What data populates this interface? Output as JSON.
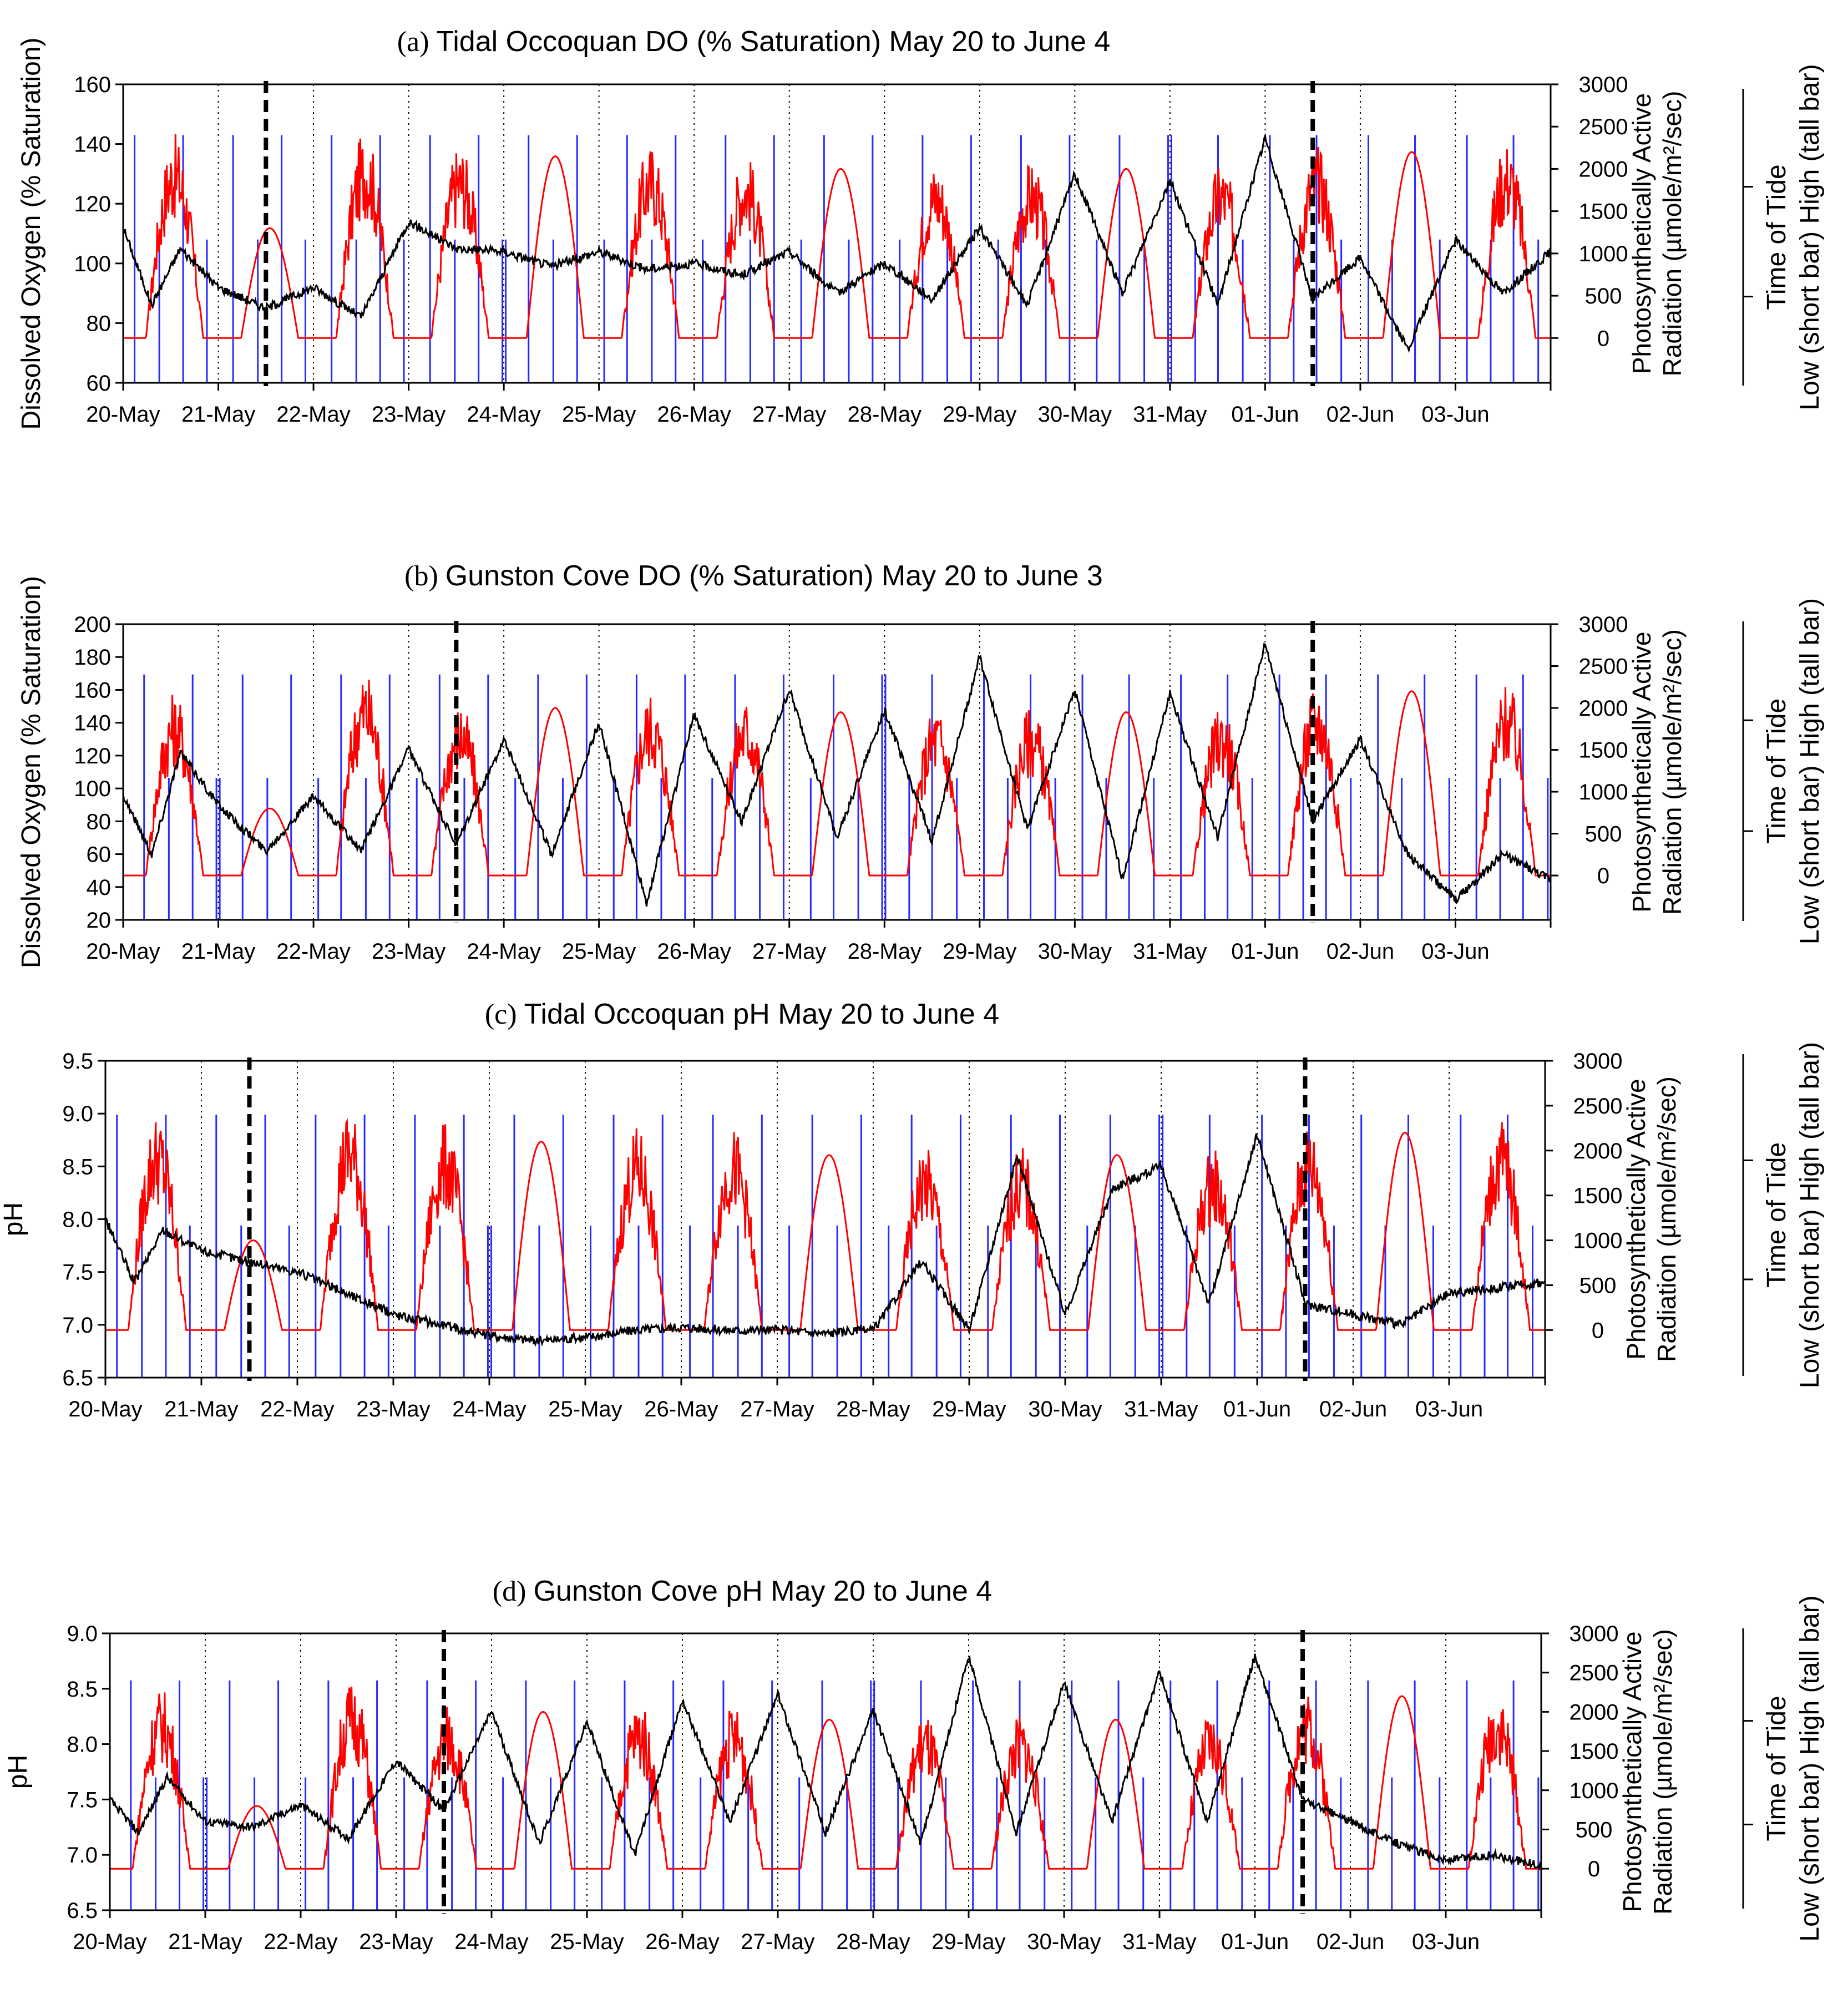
{
  "chart_data": [
    {
      "type": "line",
      "panel": "(a)",
      "title": "Tidal Occoquan DO (% Saturation) May 20 to June 4",
      "ylabel": "Dissolved Oxygen (% Saturation)",
      "ylim": [
        60,
        160
      ],
      "yticks": [
        60,
        80,
        100,
        120,
        140,
        160
      ],
      "y2label_line1": "Photosynthetically Active",
      "y2label_line2": "Radiation (µmole/m²/sec)",
      "y2lim": [
        0,
        3000
      ],
      "y2ticks": [
        0,
        500,
        1000,
        1500,
        2000,
        2500,
        3000
      ],
      "tide_label_line1": "Time of Tide",
      "tide_label_line2": "Low (short bar)   High (tall bar)",
      "x_tick_labels": [
        "20-May",
        "21-May",
        "22-May",
        "23-May",
        "24-May",
        "25-May",
        "26-May",
        "27-May",
        "28-May",
        "29-May",
        "30-May",
        "31-May",
        "01-Jun",
        "02-Jun",
        "03-Jun"
      ],
      "xlim_days": [
        0,
        15
      ],
      "event_lines_day": [
        1.5,
        12.5
      ],
      "series": [
        {
          "name": "Dissolved Oxygen",
          "color": "#000000",
          "x_day": [
            0,
            0.3,
            0.6,
            1.0,
            1.5,
            2.0,
            2.5,
            3.0,
            3.5,
            4.0,
            4.5,
            5.0,
            5.5,
            6.0,
            6.5,
            7.0,
            7.5,
            8.0,
            8.5,
            9.0,
            9.5,
            10.0,
            10.5,
            11.0,
            11.5,
            12.0,
            12.5,
            13.0,
            13.5,
            14.0,
            14.5,
            15.0
          ],
          "values": [
            112,
            86,
            105,
            92,
            85,
            92,
            82,
            114,
            105,
            104,
            99,
            104,
            98,
            100,
            96,
            104,
            90,
            100,
            88,
            112,
            86,
            130,
            90,
            128,
            86,
            142,
            88,
            102,
            71,
            108,
            90,
            104
          ]
        },
        {
          "name": "PAR peak",
          "color": "#ff0000",
          "unit": "µmole/m²/sec",
          "x_day": [
            0.5,
            1.5,
            2.5,
            3.5,
            4.5,
            5.5,
            6.5,
            7.5,
            8.5,
            9.5,
            10.5,
            11.5,
            12.5,
            13.5,
            14.5
          ],
          "values": [
            2300,
            1300,
            2350,
            2200,
            2150,
            2200,
            2100,
            2000,
            2000,
            2000,
            2000,
            2000,
            2200,
            2200,
            2250
          ]
        },
        {
          "name": "Time of Tide",
          "color": "#0000ff",
          "note": "about four tide bars per day: tall bar = high tide, short bar = low tide"
        }
      ]
    },
    {
      "type": "line",
      "panel": "(b)",
      "title": "Gunston Cove DO (% Saturation) May 20 to June 3",
      "ylabel": "Dissolved Oxygen (% Saturation)",
      "ylim": [
        20,
        200
      ],
      "yticks": [
        20,
        40,
        60,
        80,
        100,
        120,
        140,
        160,
        180,
        200
      ],
      "y2label_line1": "Photosynthetically Active",
      "y2label_line2": "Radiation (µmole/m²/sec)",
      "y2lim": [
        0,
        3000
      ],
      "y2ticks": [
        0,
        500,
        1000,
        1500,
        2000,
        2500,
        3000
      ],
      "tide_label_line1": "Time of Tide",
      "tide_label_line2": "Low (short bar)   High (tall bar)",
      "x_tick_labels": [
        "20-May",
        "21-May",
        "22-May",
        "23-May",
        "24-May",
        "25-May",
        "26-May",
        "27-May",
        "28-May",
        "29-May",
        "30-May",
        "31-May",
        "01-Jun",
        "02-Jun",
        "03-Jun"
      ],
      "xlim_days": [
        0,
        15
      ],
      "event_lines_day": [
        3.5,
        12.5
      ],
      "series": [
        {
          "name": "Dissolved Oxygen",
          "color": "#000000",
          "x_day": [
            0,
            0.3,
            0.6,
            1.0,
            1.5,
            2.0,
            2.5,
            3.0,
            3.5,
            4.0,
            4.5,
            5.0,
            5.5,
            6.0,
            6.5,
            7.0,
            7.5,
            8.0,
            8.5,
            9.0,
            9.5,
            10.0,
            10.5,
            11.0,
            11.5,
            12.0,
            12.5,
            13.0,
            13.5,
            14.0,
            14.5,
            15.0
          ],
          "values": [
            96,
            60,
            122,
            90,
            62,
            95,
            62,
            124,
            65,
            130,
            60,
            140,
            30,
            145,
            80,
            160,
            70,
            148,
            68,
            180,
            75,
            160,
            45,
            158,
            70,
            188,
            80,
            130,
            60,
            32,
            60,
            44
          ]
        },
        {
          "name": "PAR peak",
          "color": "#ff0000",
          "unit": "µmole/m²/sec",
          "x_day": [
            0.5,
            1.5,
            2.5,
            3.5,
            4.5,
            5.5,
            6.5,
            7.5,
            8.5,
            9.5,
            10.5,
            11.5,
            12.5,
            13.5,
            14.5
          ],
          "values": [
            2100,
            800,
            2350,
            2000,
            2000,
            2100,
            2050,
            1950,
            1950,
            1950,
            1950,
            1950,
            2200,
            2200,
            2200
          ]
        },
        {
          "name": "Time of Tide",
          "color": "#0000ff",
          "note": "about four tide bars per day: tall bar = high tide, short bar = low tide"
        }
      ]
    },
    {
      "type": "line",
      "panel": "(c)",
      "title": "Tidal Occoquan pH May 20 to June 4",
      "ylabel": "pH",
      "ylim": [
        6.5,
        9.5
      ],
      "yticks": [
        6.5,
        7.0,
        7.5,
        8.0,
        8.5,
        9.0,
        9.5
      ],
      "y2label_line1": "Photosynthetically Active",
      "y2label_line2": "Radiation (µmole/m²/sec)",
      "y2lim": [
        0,
        3000
      ],
      "y2ticks": [
        0,
        500,
        1000,
        1500,
        2000,
        2500,
        3000
      ],
      "tide_label_line1": "Time of Tide",
      "tide_label_line2": "Low (short bar)   High (tall bar)",
      "x_tick_labels": [
        "20-May",
        "21-May",
        "22-May",
        "23-May",
        "24-May",
        "25-May",
        "26-May",
        "27-May",
        "28-May",
        "29-May",
        "30-May",
        "31-May",
        "01-Jun",
        "02-Jun",
        "03-Jun"
      ],
      "xlim_days": [
        0,
        15
      ],
      "event_lines_day": [
        1.5,
        12.5
      ],
      "series": [
        {
          "name": "pH",
          "color": "#000000",
          "x_day": [
            0,
            0.3,
            0.6,
            1.0,
            1.5,
            2.0,
            2.5,
            3.0,
            3.5,
            4.0,
            4.5,
            5.0,
            5.5,
            6.0,
            6.5,
            7.0,
            7.5,
            8.0,
            8.5,
            9.0,
            9.5,
            10.0,
            10.5,
            11.0,
            11.5,
            12.0,
            12.5,
            13.0,
            13.5,
            14.0,
            14.5,
            15.0
          ],
          "values": [
            8.0,
            7.4,
            7.9,
            7.7,
            7.6,
            7.5,
            7.3,
            7.1,
            7.0,
            6.9,
            6.85,
            6.88,
            6.95,
            6.98,
            6.95,
            6.95,
            6.92,
            6.95,
            7.6,
            6.95,
            8.6,
            7.1,
            8.3,
            8.5,
            7.2,
            8.8,
            7.2,
            7.1,
            7.0,
            7.3,
            7.35,
            7.4
          ]
        },
        {
          "name": "PAR peak",
          "color": "#ff0000",
          "unit": "µmole/m²/sec",
          "x_day": [
            0.5,
            1.5,
            2.5,
            3.5,
            4.5,
            5.5,
            6.5,
            7.5,
            8.5,
            9.5,
            10.5,
            11.5,
            12.5,
            13.5,
            14.5
          ],
          "values": [
            2300,
            1000,
            2350,
            2200,
            2100,
            2150,
            2150,
            1950,
            1950,
            1950,
            1950,
            1950,
            2200,
            2200,
            2250
          ]
        },
        {
          "name": "Time of Tide",
          "color": "#0000ff",
          "note": "about four tide bars per day: tall bar = high tide, short bar = low tide"
        }
      ]
    },
    {
      "type": "line",
      "panel": "(d)",
      "title": "Gunston Cove pH May 20 to June 4",
      "ylabel": "pH",
      "ylim": [
        6.5,
        9.0
      ],
      "yticks": [
        6.5,
        7.0,
        7.5,
        8.0,
        8.5,
        9.0
      ],
      "y2label_line1": "Photosynthetically Active",
      "y2label_line2": "Radiation (µmole/m²/sec)",
      "y2lim": [
        0,
        3000
      ],
      "y2ticks": [
        0,
        500,
        1000,
        1500,
        2000,
        2500,
        3000
      ],
      "tide_label_line1": "Time of Tide",
      "tide_label_line2": "Low (short bar)   High (tall bar)",
      "x_tick_labels": [
        "20-May",
        "21-May",
        "22-May",
        "23-May",
        "24-May",
        "25-May",
        "26-May",
        "27-May",
        "28-May",
        "29-May",
        "30-May",
        "31-May",
        "01-Jun",
        "02-Jun",
        "03-Jun"
      ],
      "xlim_days": [
        0,
        15
      ],
      "event_lines_day": [
        3.5,
        12.5
      ],
      "series": [
        {
          "name": "pH",
          "color": "#000000",
          "x_day": [
            0,
            0.3,
            0.6,
            1.0,
            1.5,
            2.0,
            2.5,
            3.0,
            3.5,
            4.0,
            4.5,
            5.0,
            5.5,
            6.0,
            6.5,
            7.0,
            7.5,
            8.0,
            8.5,
            9.0,
            9.5,
            10.0,
            10.5,
            11.0,
            11.5,
            12.0,
            12.5,
            13.0,
            13.5,
            14.0,
            14.5,
            15.0
          ],
          "values": [
            7.5,
            7.2,
            7.7,
            7.3,
            7.25,
            7.45,
            7.15,
            7.85,
            7.4,
            8.3,
            7.1,
            8.2,
            7.0,
            8.4,
            7.3,
            8.45,
            7.2,
            8.3,
            7.1,
            8.8,
            7.2,
            8.55,
            7.3,
            8.65,
            7.3,
            8.8,
            7.5,
            7.3,
            7.1,
            6.95,
            7.0,
            6.9
          ]
        },
        {
          "name": "PAR peak",
          "color": "#ff0000",
          "unit": "µmole/m²/sec",
          "x_day": [
            0.5,
            1.5,
            2.5,
            3.5,
            4.5,
            5.5,
            6.5,
            7.5,
            8.5,
            9.5,
            10.5,
            11.5,
            12.5,
            13.5,
            14.5
          ],
          "values": [
            2200,
            800,
            2300,
            2000,
            2000,
            2050,
            2000,
            1900,
            1900,
            1900,
            1900,
            1900,
            2200,
            2200,
            2200
          ]
        },
        {
          "name": "Time of Tide",
          "color": "#0000ff",
          "note": "about four tide bars per day: tall bar = high tide, short bar = low tide"
        }
      ]
    }
  ]
}
